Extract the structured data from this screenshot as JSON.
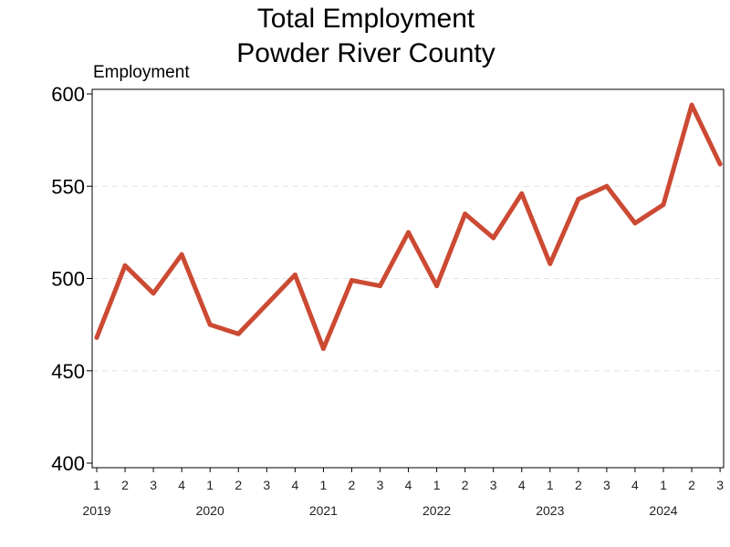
{
  "chart_data": {
    "type": "line",
    "title_lines": [
      "Total Employment",
      "Powder River County"
    ],
    "ylabel": "Employment",
    "ylim": [
      400,
      600
    ],
    "yticks": [
      400,
      450,
      500,
      550,
      600
    ],
    "grid": "horizontal-dashed",
    "legend": "none",
    "x": [
      {
        "year": "2019",
        "quarter": "1"
      },
      {
        "year": "2019",
        "quarter": "2"
      },
      {
        "year": "2019",
        "quarter": "3"
      },
      {
        "year": "2019",
        "quarter": "4"
      },
      {
        "year": "2020",
        "quarter": "1"
      },
      {
        "year": "2020",
        "quarter": "2"
      },
      {
        "year": "2020",
        "quarter": "3"
      },
      {
        "year": "2020",
        "quarter": "4"
      },
      {
        "year": "2021",
        "quarter": "1"
      },
      {
        "year": "2021",
        "quarter": "2"
      },
      {
        "year": "2021",
        "quarter": "3"
      },
      {
        "year": "2021",
        "quarter": "4"
      },
      {
        "year": "2022",
        "quarter": "1"
      },
      {
        "year": "2022",
        "quarter": "2"
      },
      {
        "year": "2022",
        "quarter": "3"
      },
      {
        "year": "2022",
        "quarter": "4"
      },
      {
        "year": "2023",
        "quarter": "1"
      },
      {
        "year": "2023",
        "quarter": "2"
      },
      {
        "year": "2023",
        "quarter": "3"
      },
      {
        "year": "2023",
        "quarter": "4"
      },
      {
        "year": "2024",
        "quarter": "1"
      },
      {
        "year": "2024",
        "quarter": "2"
      },
      {
        "year": "2024",
        "quarter": "3"
      }
    ],
    "years": [
      "2019",
      "2020",
      "2021",
      "2022",
      "2023",
      "2024"
    ],
    "series": [
      {
        "color": "#cc4a33",
        "values": [
          468,
          507,
          492,
          513,
          475,
          470,
          486,
          502,
          462,
          499,
          496,
          525,
          496,
          535,
          522,
          546,
          508,
          543,
          550,
          530,
          540,
          594,
          562
        ]
      }
    ]
  }
}
